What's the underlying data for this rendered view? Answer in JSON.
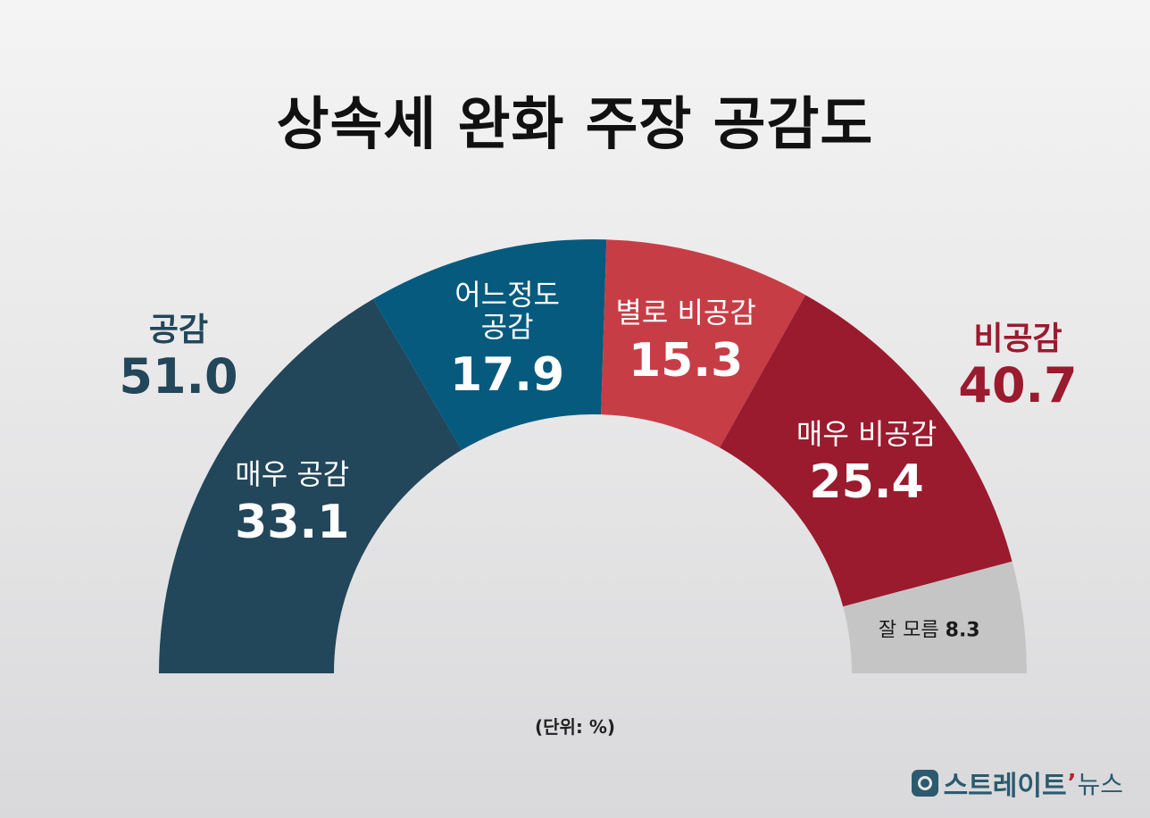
{
  "title": "상속세 완화 주장 공감도",
  "unit_label": "(단위: %)",
  "groups": {
    "agree": {
      "label": "공감",
      "value": "51.0",
      "color": "#22465a"
    },
    "disagree": {
      "label": "비공감",
      "value": "40.7",
      "color": "#9a1b2e"
    }
  },
  "logo": {
    "main": "스트레이트",
    "tail": "뉴스"
  },
  "chart_data": {
    "type": "pie",
    "subtype": "semicircle-donut",
    "title": "상속세 완화 주장 공감도",
    "unit": "%",
    "slices": [
      {
        "label": "매우 공감",
        "value": 33.1,
        "display": "33.1",
        "color": "#22465a"
      },
      {
        "label": "어느정도 공감",
        "value": 17.9,
        "display": "17.9",
        "color": "#055a7e"
      },
      {
        "label": "별로 비공감",
        "value": 15.3,
        "display": "15.3",
        "color": "#c73d46"
      },
      {
        "label": "매우 비공감",
        "value": 25.4,
        "display": "25.4",
        "color": "#9a1b2e"
      },
      {
        "label": "잘 모름",
        "value": 8.3,
        "display": "8.3",
        "color": "#c5c5c6"
      }
    ]
  }
}
